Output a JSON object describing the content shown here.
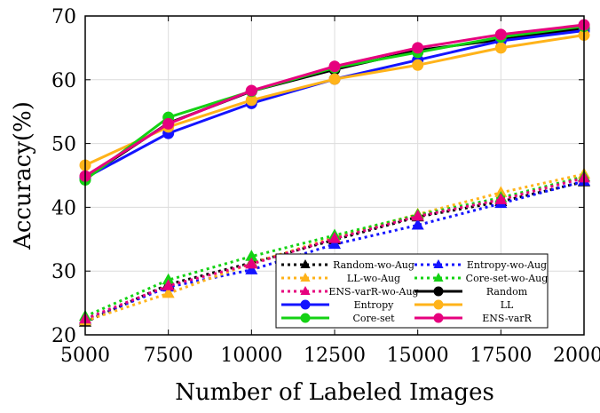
{
  "chart_data": {
    "type": "line",
    "xlabel": "Number of Labeled Images",
    "ylabel": "Accuracy(%)",
    "xlim": [
      5000,
      20000
    ],
    "ylim": [
      20,
      70
    ],
    "x": [
      5000,
      7500,
      10000,
      12500,
      15000,
      17500,
      20000
    ],
    "x_tick_labels": [
      "5000",
      "7500",
      "10000",
      "12500",
      "15000",
      "17500",
      "20000"
    ],
    "y_ticks": [
      20,
      30,
      40,
      50,
      60,
      70
    ],
    "y_tick_labels": [
      "20",
      "30",
      "40",
      "50",
      "60",
      "70"
    ],
    "grid": true,
    "legend_position": "bottom-right",
    "series": [
      {
        "name": "Random-wo-Aug",
        "color": "#000000",
        "dash": "dotted",
        "marker": "triangle",
        "values": [
          22.0,
          27.9,
          31.3,
          34.9,
          38.5,
          40.9,
          44.0
        ]
      },
      {
        "name": "Entropy-wo-Aug",
        "color": "#1414ff",
        "dash": "dotted",
        "marker": "triangle",
        "values": [
          22.3,
          27.5,
          30.2,
          34.2,
          37.2,
          40.6,
          44.1
        ]
      },
      {
        "name": "LL-wo-Aug",
        "color": "#ffb31a",
        "dash": "dotted",
        "marker": "triangle",
        "values": [
          22.2,
          26.5,
          31.2,
          35.3,
          38.9,
          42.3,
          45.2
        ]
      },
      {
        "name": "Core-set-wo-Aug",
        "color": "#14d214",
        "dash": "dotted",
        "marker": "triangle",
        "values": [
          22.9,
          28.6,
          32.3,
          35.6,
          38.8,
          41.5,
          44.8
        ]
      },
      {
        "name": "ENS-varR-wo-Aug",
        "color": "#e6007e",
        "dash": "dotted",
        "marker": "triangle",
        "values": [
          22.5,
          27.7,
          31.1,
          35.1,
          38.6,
          41.2,
          44.6
        ]
      },
      {
        "name": "Random",
        "color": "#000000",
        "dash": "solid",
        "marker": "circle",
        "values": [
          44.6,
          53.2,
          58.2,
          61.6,
          64.6,
          66.3,
          68.1
        ]
      },
      {
        "name": "Entropy",
        "color": "#1414ff",
        "dash": "solid",
        "marker": "circle",
        "values": [
          44.6,
          51.6,
          56.3,
          60.1,
          63.1,
          66.1,
          67.7
        ]
      },
      {
        "name": "LL",
        "color": "#ffb31a",
        "dash": "solid",
        "marker": "circle",
        "values": [
          46.6,
          52.6,
          56.8,
          60.1,
          62.3,
          65.0,
          67.0
        ]
      },
      {
        "name": "Core-set",
        "color": "#14d214",
        "dash": "solid",
        "marker": "circle",
        "values": [
          44.3,
          54.1,
          58.2,
          61.9,
          64.3,
          66.7,
          68.4
        ]
      },
      {
        "name": "ENS-varR",
        "color": "#e6007e",
        "dash": "solid",
        "marker": "circle",
        "values": [
          44.9,
          53.1,
          58.3,
          62.1,
          65.0,
          67.1,
          68.6
        ]
      }
    ],
    "legend_order": [
      "Random-wo-Aug",
      "Entropy-wo-Aug",
      "LL-wo-Aug",
      "Core-set-wo-Aug",
      "ENS-varR-wo-Aug",
      "Random",
      "Entropy",
      "LL",
      "Core-set",
      "ENS-varR"
    ]
  }
}
